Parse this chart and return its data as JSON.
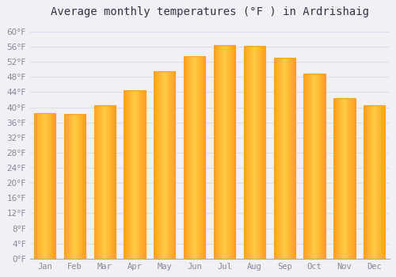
{
  "months": [
    "Jan",
    "Feb",
    "Mar",
    "Apr",
    "May",
    "Jun",
    "Jul",
    "Aug",
    "Sep",
    "Oct",
    "Nov",
    "Dec"
  ],
  "values": [
    38.5,
    38.3,
    40.5,
    44.5,
    49.5,
    53.5,
    56.5,
    56.3,
    53.0,
    49.0,
    42.5,
    40.5
  ],
  "bar_color_center": "#FFCC44",
  "bar_color_edge": "#FFA020",
  "background_color": "#f0f0f5",
  "plot_bg_color": "#f0f0f5",
  "grid_color": "#ddddee",
  "title": "Average monthly temperatures (°F ) in Ardrishaig",
  "title_fontsize": 10,
  "ylim": [
    0,
    62
  ],
  "ytick_values": [
    0,
    4,
    8,
    12,
    16,
    20,
    24,
    28,
    32,
    36,
    40,
    44,
    48,
    52,
    56,
    60
  ],
  "tick_label_color": "#888899",
  "font_family": "monospace"
}
